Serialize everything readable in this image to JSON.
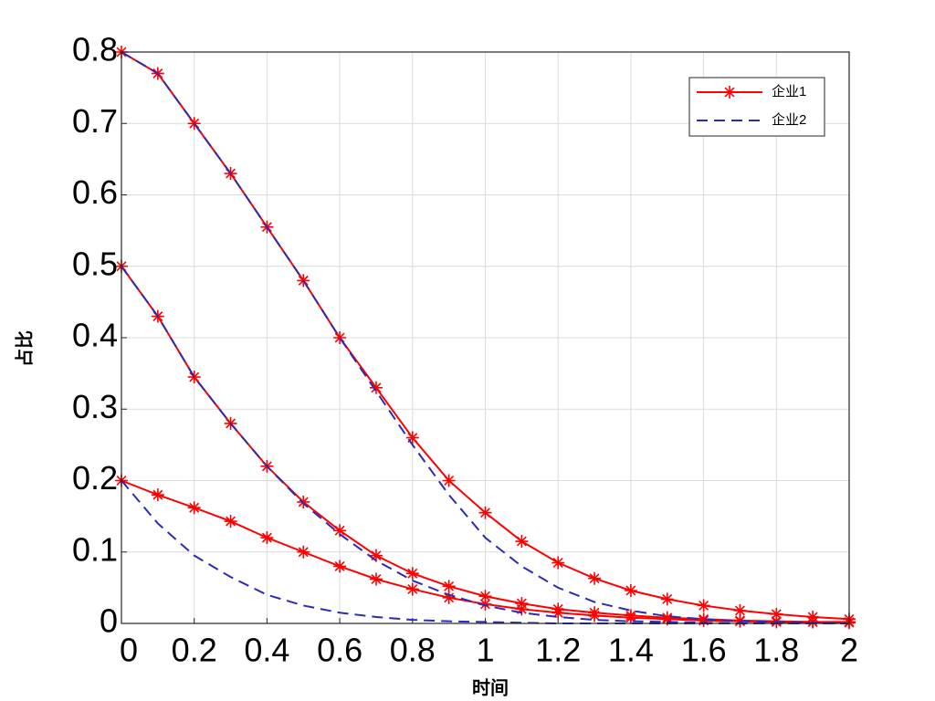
{
  "chart_data": {
    "type": "line",
    "x_label": "时间",
    "y_label": "占比",
    "x": [
      0,
      0.1,
      0.2,
      0.3,
      0.4,
      0.5,
      0.6,
      0.7,
      0.8,
      0.9,
      1.0,
      1.1,
      1.2,
      1.3,
      1.4,
      1.5,
      1.6,
      1.7,
      1.8,
      1.9,
      2.0
    ],
    "xlim": [
      0,
      2
    ],
    "xticks": [
      0,
      0.2,
      0.4,
      0.6,
      0.8,
      1,
      1.2,
      1.4,
      1.6,
      1.8,
      2
    ],
    "ylim": [
      0,
      0.8
    ],
    "yticks": [
      0,
      0.1,
      0.2,
      0.3,
      0.4,
      0.5,
      0.6,
      0.7,
      0.8
    ],
    "grid": true,
    "legend_position": "upper right",
    "series": [
      {
        "name": "企业1",
        "color": "#ff0000",
        "line_style": "solid",
        "marker": "asterisk",
        "curves": [
          [
            0.8,
            0.77,
            0.7,
            0.63,
            0.555,
            0.48,
            0.4,
            0.33,
            0.26,
            0.2,
            0.155,
            0.115,
            0.085,
            0.063,
            0.046,
            0.034,
            0.025,
            0.018,
            0.013,
            0.009,
            0.006
          ],
          [
            0.5,
            0.43,
            0.345,
            0.28,
            0.22,
            0.17,
            0.13,
            0.095,
            0.07,
            0.052,
            0.038,
            0.028,
            0.02,
            0.015,
            0.011,
            0.008,
            0.006,
            0.004,
            0.003,
            0.002,
            0.002
          ],
          [
            0.2,
            0.18,
            0.162,
            0.143,
            0.12,
            0.1,
            0.08,
            0.062,
            0.048,
            0.036,
            0.027,
            0.02,
            0.015,
            0.011,
            0.008,
            0.006,
            0.004,
            0.003,
            0.002,
            0.002,
            0.001
          ]
        ]
      },
      {
        "name": "企业2",
        "color": "#2b2bb8",
        "line_style": "dashed",
        "marker": "none",
        "curves": [
          [
            0.8,
            0.77,
            0.7,
            0.63,
            0.555,
            0.48,
            0.4,
            0.325,
            0.25,
            0.18,
            0.12,
            0.08,
            0.05,
            0.03,
            0.018,
            0.01,
            0.006,
            0.003,
            0.002,
            0.001,
            0
          ],
          [
            0.5,
            0.43,
            0.345,
            0.28,
            0.22,
            0.168,
            0.125,
            0.088,
            0.06,
            0.04,
            0.025,
            0.015,
            0.009,
            0.005,
            0.003,
            0.002,
            0.001,
            0,
            0,
            0,
            0
          ],
          [
            0.2,
            0.14,
            0.095,
            0.065,
            0.04,
            0.025,
            0.015,
            0.009,
            0.005,
            0.003,
            0.002,
            0.001,
            0,
            0,
            0,
            0,
            0,
            0,
            0,
            0,
            0
          ]
        ]
      }
    ]
  }
}
